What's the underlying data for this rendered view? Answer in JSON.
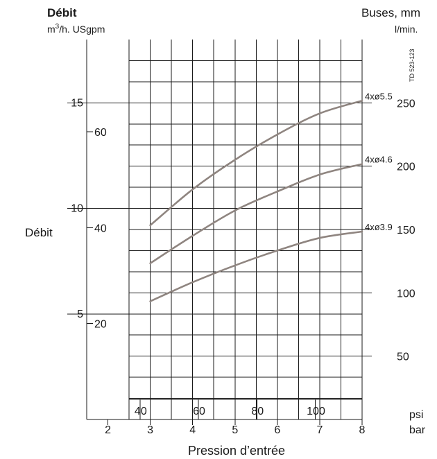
{
  "chart_data": {
    "type": "line",
    "title_left": "Débit",
    "units_left": "m3/h. USgpm",
    "units_left_base": "m",
    "units_left_sup": "3",
    "units_left_rest": "/h. USgpm",
    "title_right": "Buses, mm",
    "units_right": "l/min.",
    "ylabel": "Débit",
    "xlabel": "Pression d’entrée",
    "doc_ref": "TD 523-123",
    "x_unit_bar": "bar",
    "x_unit_psi": "psi",
    "xlim": [
      1.5,
      8
    ],
    "ylim": [
      0,
      18
    ],
    "x_ticks_bar": [
      "2",
      "3",
      "4",
      "5",
      "6",
      "7",
      "8"
    ],
    "x_ticks_psi": [
      "40",
      "60",
      "80",
      "100"
    ],
    "y_ticks_m3h": [
      "5",
      "10",
      "15"
    ],
    "y_ticks_usgpm": [
      "20",
      "40",
      "60"
    ],
    "y_ticks_lmin": [
      "50",
      "100",
      "150",
      "200",
      "250"
    ],
    "x": [
      3,
      4,
      5,
      6,
      7,
      8
    ],
    "series": [
      {
        "name": "4xø5.5",
        "values": [
          9.2,
          10.9,
          12.3,
          13.5,
          14.5,
          15.1
        ]
      },
      {
        "name": "4xø4.6",
        "values": [
          7.4,
          8.7,
          9.9,
          10.8,
          11.6,
          12.1
        ]
      },
      {
        "name": "4xø3.9",
        "values": [
          5.6,
          6.5,
          7.3,
          8.0,
          8.6,
          8.9
        ]
      }
    ],
    "colors": {
      "curve": "#8f8580",
      "grid": "#1a1a1a"
    },
    "grid": true
  }
}
